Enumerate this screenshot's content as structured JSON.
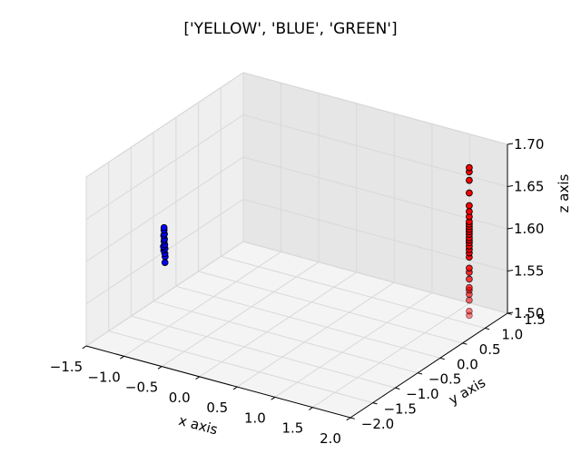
{
  "chart_data": {
    "type": "scatter",
    "projection": "3d",
    "title": "['YELLOW', 'BLUE', 'GREEN']",
    "xlabel": "x axis",
    "ylabel": "y axis",
    "zlabel": "z axis",
    "xlim": [
      -1.5,
      2.0
    ],
    "ylim": [
      -2.0,
      1.5
    ],
    "zlim": [
      1.5,
      1.7
    ],
    "xticks": [
      "−1.5",
      "−1.0",
      "−0.5",
      "0.0",
      "0.5",
      "1.0",
      "1.5",
      "2.0"
    ],
    "yticks": [
      "−2.0",
      "−1.5",
      "−1.0",
      "−0.5",
      "0.0",
      "0.5",
      "1.0",
      "1.5"
    ],
    "zticks": [
      "1.50",
      "1.55",
      "1.60",
      "1.65",
      "1.70"
    ],
    "grid": true,
    "series": [
      {
        "color": "#ff0000",
        "points": [
          {
            "x": 1.85,
            "y": 0.9,
            "z": 1.69
          },
          {
            "x": 1.85,
            "y": 0.9,
            "z": 1.685
          },
          {
            "x": 1.85,
            "y": 0.9,
            "z": 1.675
          },
          {
            "x": 1.85,
            "y": 0.9,
            "z": 1.66
          },
          {
            "x": 1.85,
            "y": 0.9,
            "z": 1.645
          },
          {
            "x": 1.85,
            "y": 0.9,
            "z": 1.638
          },
          {
            "x": 1.85,
            "y": 0.9,
            "z": 1.632
          },
          {
            "x": 1.85,
            "y": 0.9,
            "z": 1.626
          },
          {
            "x": 1.85,
            "y": 0.9,
            "z": 1.623
          },
          {
            "x": 1.85,
            "y": 0.9,
            "z": 1.62
          },
          {
            "x": 1.85,
            "y": 0.9,
            "z": 1.617
          },
          {
            "x": 1.85,
            "y": 0.9,
            "z": 1.614
          },
          {
            "x": 1.85,
            "y": 0.9,
            "z": 1.611
          },
          {
            "x": 1.85,
            "y": 0.9,
            "z": 1.607
          },
          {
            "x": 1.85,
            "y": 0.9,
            "z": 1.604
          },
          {
            "x": 1.85,
            "y": 0.9,
            "z": 1.601
          },
          {
            "x": 1.85,
            "y": 0.9,
            "z": 1.597
          },
          {
            "x": 1.85,
            "y": 0.9,
            "z": 1.593
          },
          {
            "x": 1.85,
            "y": 0.9,
            "z": 1.589
          },
          {
            "x": 1.85,
            "y": 0.9,
            "z": 1.584
          },
          {
            "x": 1.85,
            "y": 0.9,
            "z": 1.571
          },
          {
            "x": 1.85,
            "y": 0.9,
            "z": 1.566
          },
          {
            "x": 1.85,
            "y": 0.9,
            "z": 1.558
          },
          {
            "x": 1.85,
            "y": 0.9,
            "z": 1.548
          },
          {
            "x": 1.85,
            "y": 0.9,
            "z": 1.545
          },
          {
            "x": 1.85,
            "y": 0.9,
            "z": 1.54
          },
          {
            "x": 1.85,
            "y": 0.9,
            "z": 1.533
          },
          {
            "x": 1.85,
            "y": 0.9,
            "z": 1.52
          },
          {
            "x": 1.85,
            "y": 0.9,
            "z": 1.515
          }
        ]
      },
      {
        "color": "#0000ff",
        "points": [
          {
            "x": -1.45,
            "y": -0.35,
            "z": 1.583
          },
          {
            "x": -1.45,
            "y": -0.35,
            "z": 1.58
          },
          {
            "x": -1.44,
            "y": -0.36,
            "z": 1.576
          },
          {
            "x": -1.46,
            "y": -0.34,
            "z": 1.573
          },
          {
            "x": -1.44,
            "y": -0.36,
            "z": 1.57
          },
          {
            "x": -1.45,
            "y": -0.35,
            "z": 1.567
          },
          {
            "x": -1.43,
            "y": -0.37,
            "z": 1.564
          },
          {
            "x": -1.44,
            "y": -0.38,
            "z": 1.562
          },
          {
            "x": -1.42,
            "y": -0.38,
            "z": 1.56
          },
          {
            "x": -1.43,
            "y": -0.39,
            "z": 1.558
          },
          {
            "x": -1.41,
            "y": -0.4,
            "z": 1.555
          },
          {
            "x": -1.4,
            "y": -0.41,
            "z": 1.552
          },
          {
            "x": -1.39,
            "y": -0.43,
            "z": 1.546
          }
        ]
      }
    ]
  }
}
